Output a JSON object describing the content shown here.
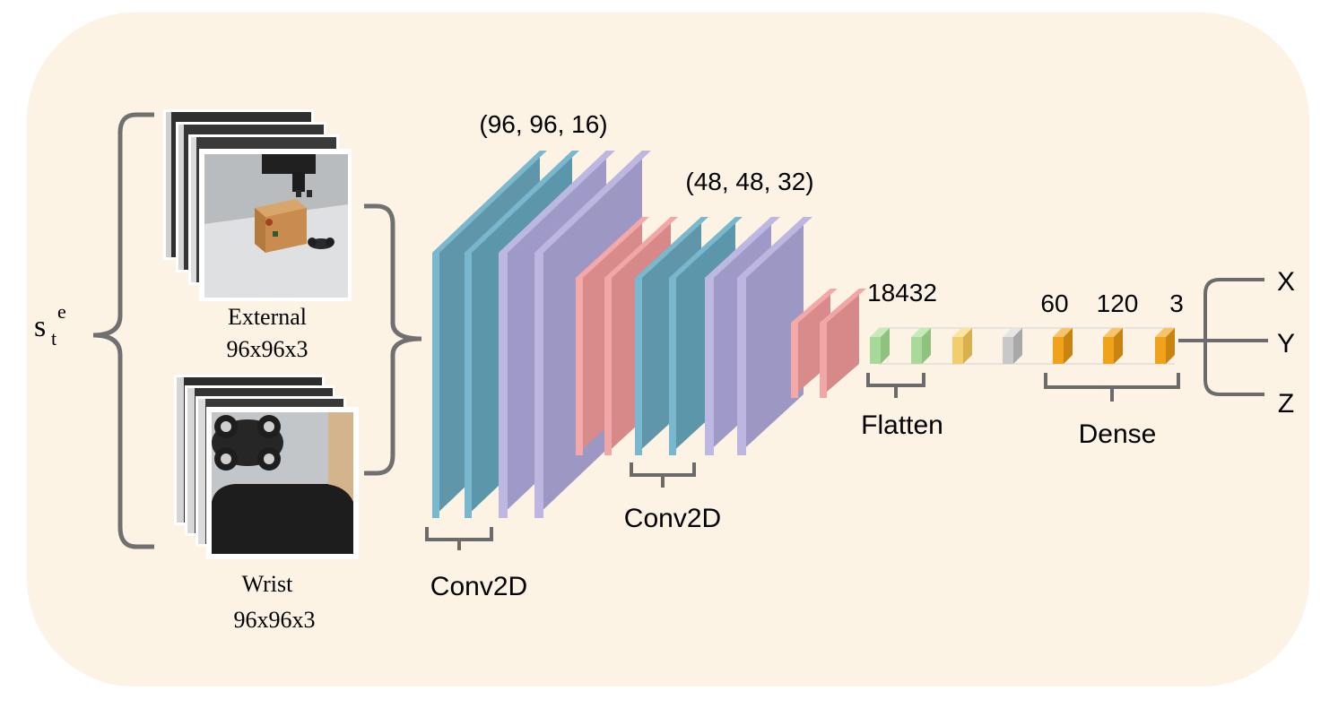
{
  "state_symbol": {
    "base": "s",
    "subscript": "t",
    "superscript": "e"
  },
  "inputs": {
    "external": {
      "name": "External",
      "shape": "96x96x3"
    },
    "wrist": {
      "name": "Wrist",
      "shape": "96x96x3"
    }
  },
  "layers": {
    "conv_block_1": {
      "shape": "(96, 96, 16)",
      "label": "Conv2D"
    },
    "conv_block_2": {
      "shape": "(48, 48, 32)",
      "label": "Conv2D"
    },
    "flatten": {
      "size": "18432",
      "label": "Flatten"
    },
    "dense": {
      "sizes": [
        "60",
        "120",
        "3"
      ],
      "label": "Dense"
    }
  },
  "outputs": [
    "X",
    "Y",
    "Z"
  ],
  "colors": {
    "panel": "#fcf3e5",
    "conv_blue": "#5b9aad",
    "conv_purple": "#9f98c6",
    "pool_pink": "#d98a8a",
    "flatten_green": "#a9d99a",
    "dense_yellow": "#f2cd6e",
    "dense_gray": "#c8c8c8",
    "dense_orange": "#f0a21b",
    "bracket": "#6b6b6b"
  }
}
